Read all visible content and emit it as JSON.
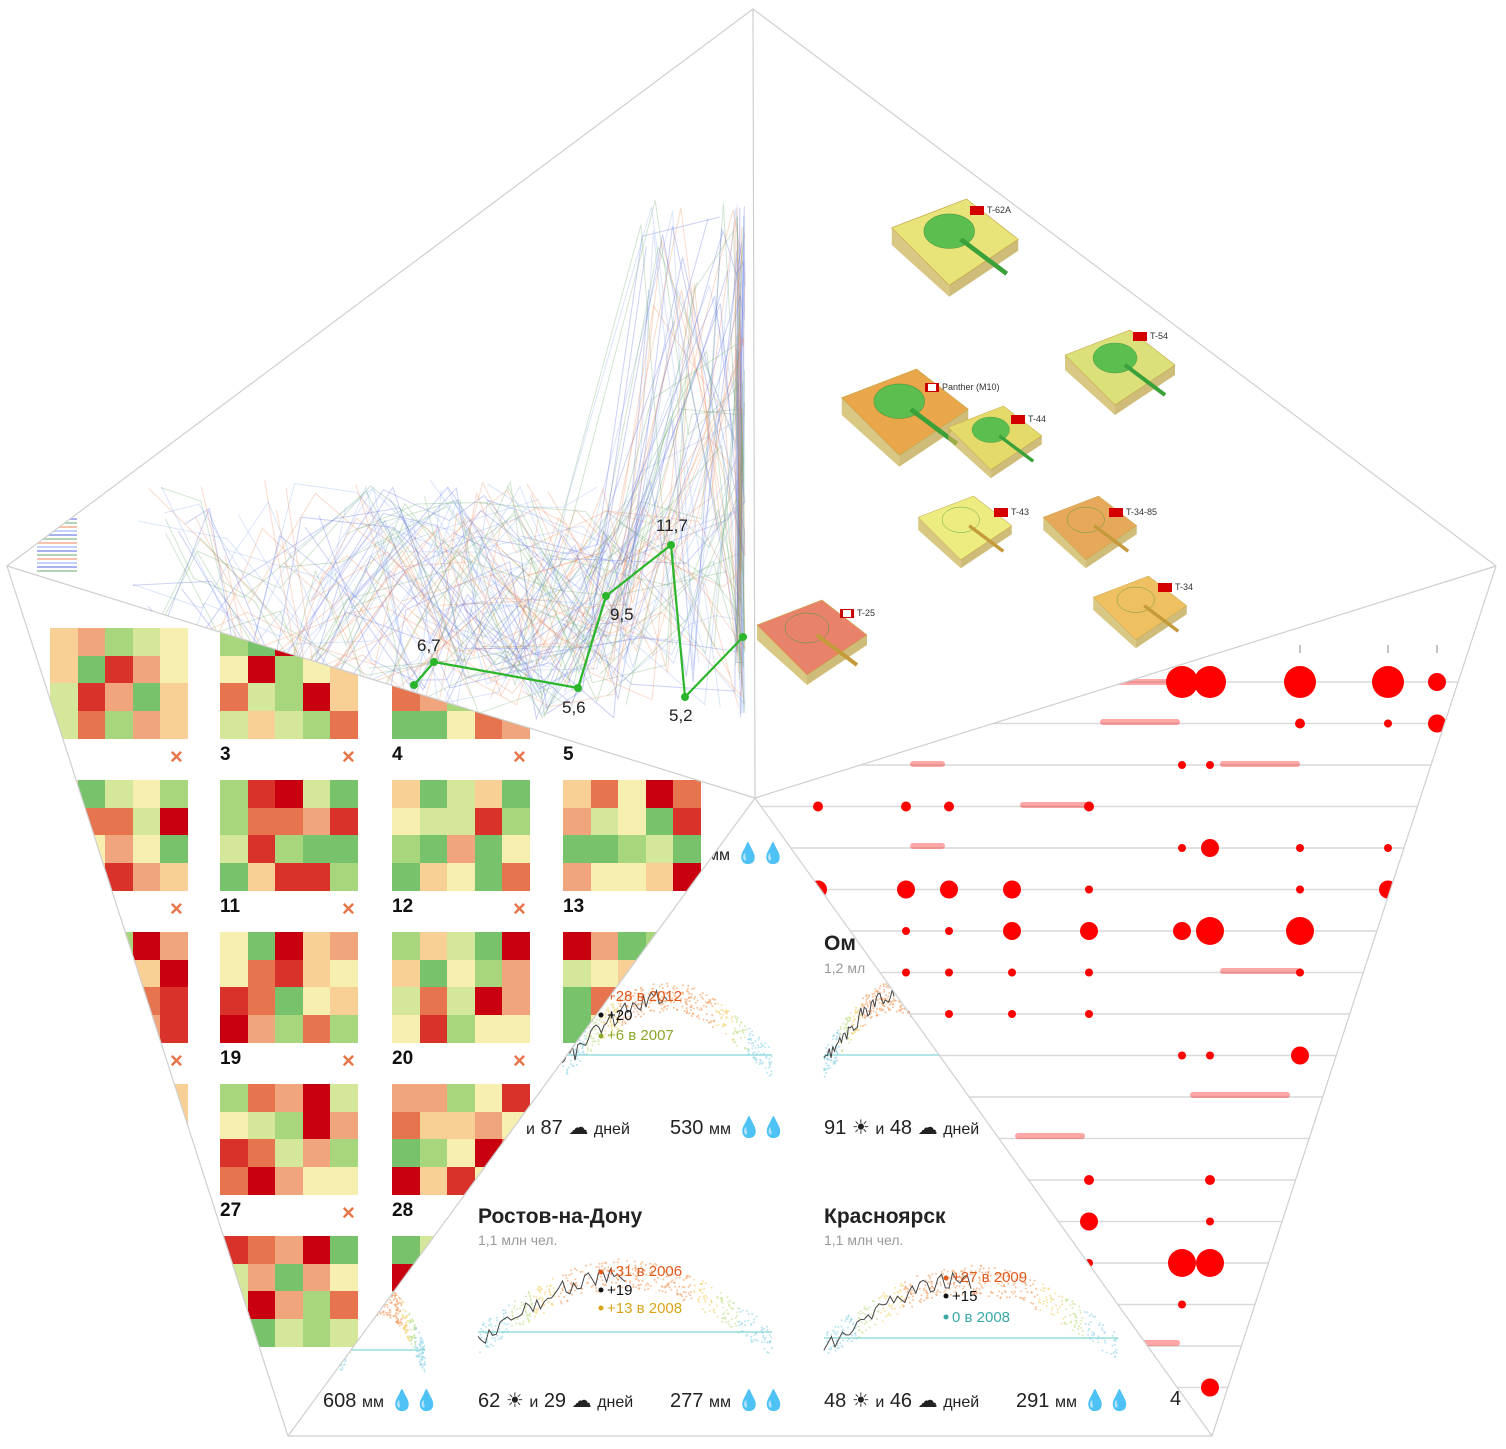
{
  "heatmap_panel": {
    "tiles": [
      {
        "number": "3",
        "remove": "×"
      },
      {
        "number": "4",
        "remove": "×"
      },
      {
        "number": "5",
        "remove": ""
      },
      {
        "number": "11",
        "remove": "×"
      },
      {
        "number": "12",
        "remove": "×"
      },
      {
        "number": "13",
        "remove": ""
      },
      {
        "number": "19",
        "remove": "×"
      },
      {
        "number": "20",
        "remove": "×"
      },
      {
        "number": "27",
        "remove": "×"
      },
      {
        "number": "28",
        "remove": ""
      }
    ],
    "extra_remove_marks": [
      "×",
      "×",
      "×"
    ],
    "colors": [
      "#77c26b",
      "#a8d67c",
      "#d4e79a",
      "#f6efb0",
      "#f8cf95",
      "#f1a57c",
      "#e5744f",
      "#d8322a",
      "#c80010"
    ]
  },
  "line_panel": {
    "highlight_values": [
      "6,7",
      "5,6",
      "9,5",
      "11,7",
      "5,2"
    ],
    "highlight_color": "#2ab52a",
    "line_colors": [
      "#5566dd",
      "#66aa66",
      "#ee8855",
      "#88aaee"
    ]
  },
  "tank_panel": {
    "tanks": [
      {
        "name": "T-62A",
        "flag": "ussr",
        "color": "#e8e47a"
      },
      {
        "name": "T-54",
        "flag": "ussr",
        "color": "#dbe07a"
      },
      {
        "name": "Panther (M10)",
        "flag": "de",
        "color": "#e9a64a"
      },
      {
        "name": "T-44",
        "flag": "ussr",
        "color": "#e3da6a"
      },
      {
        "name": "T-43",
        "flag": "ussr",
        "color": "#ecec80"
      },
      {
        "name": "T-34-85",
        "flag": "ussr",
        "color": "#e6a85a"
      },
      {
        "name": "T-34",
        "flag": "ussr",
        "color": "#efc061"
      },
      {
        "name": "T-25",
        "flag": "de",
        "color": "#e8826a"
      }
    ]
  },
  "bubble_panel": {
    "bubble_color": "#ff0000",
    "line_color": "#d9d9d9"
  },
  "weather_panel": {
    "cities": [
      {
        "name": "Ом",
        "population": "1,2 мл"
      },
      {
        "name": "Ростов-на-Дону",
        "population": "1,1 млн чел.",
        "rec_high": "+31 в 2006",
        "today": "+19",
        "rec_low": "+13 в 2008",
        "sunny": "62",
        "cloudy": "29",
        "rain": "277"
      },
      {
        "name": "Красноярск",
        "population": "1,1 млн чел.",
        "rec_high": "+27 в 2009",
        "today": "+15",
        "rec_low": "0 в 2008",
        "sunny": "48",
        "cloudy": "46",
        "rain": "291"
      }
    ],
    "partial_top": {
      "rec_high": "+28 в 2012",
      "today": "+20",
      "rec_low": "+6 в 2007",
      "cloudy": "87",
      "rain": "530",
      "sunny_omsk": "91",
      "cloudy_omsk": "48"
    },
    "partial_bottom_rain": "608",
    "partial_top_rain_unit": "мм",
    "partial_right": "4",
    "units": {
      "and": "и",
      "days": "дней",
      "mm": "мм"
    },
    "colors": {
      "high": "#e05a1c",
      "low_warm": "#d8a51a",
      "low_mid": "#8aa82a",
      "low_cool": "#38a8a8",
      "today": "#111111"
    }
  }
}
